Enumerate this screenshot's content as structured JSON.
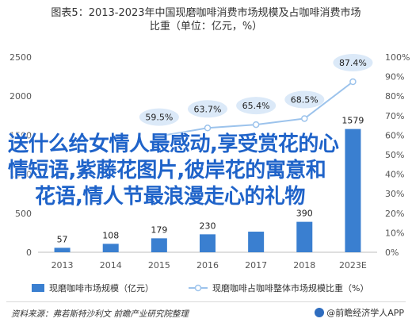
{
  "title": {
    "line1": "图表5：2013-2023年中国现磨咖啡消费市场规模及占咖啡消费市场",
    "line2": "比重（单位：亿元，%）"
  },
  "overlay_text": {
    "line1": "送什么给女情人最感动,享受赏花的心",
    "line2": "情短语,紫藤花图片,彼岸花的寓意和",
    "line3": "花语,情人节最浪漫走心的礼物"
  },
  "source": "资料来源：弗若斯特沙利文 前瞻产业研究院整理",
  "brand": "@前瞻经济学人APP",
  "colors": {
    "bar": "#3a7fd0",
    "line": "#9cc3ec",
    "marker_fill": "#ffffff",
    "callout_fill": "#dbe9f8",
    "axis_text": "#555555",
    "grid": "#e6e6e6"
  },
  "chart_data": {
    "type": "bar",
    "categories": [
      "2013",
      "2014",
      "2015",
      "2016",
      "2017",
      "2018",
      "2023E"
    ],
    "series": [
      {
        "name": "现磨咖啡市场规模（亿元）",
        "type": "bar",
        "axis": "left",
        "values": [
          57,
          108,
          179,
          230,
          264,
          390,
          1579
        ]
      },
      {
        "name": "现磨咖啡占咖啡整体市场规模比重（%）",
        "type": "line",
        "axis": "right",
        "values": [
          null,
          null,
          59.5,
          63.7,
          65.4,
          68.5,
          87.4
        ]
      }
    ],
    "bar_labels": [
      "57",
      "108",
      "179",
      "230",
      "",
      "390",
      "1579"
    ],
    "line_labels": [
      "",
      "",
      "59.5%",
      "63.7%",
      "65.4%",
      "68.5%",
      "87.4%"
    ],
    "y_left": {
      "lim": [
        0,
        2500
      ],
      "ticks": [
        "0",
        "500",
        "1000",
        "1500",
        "2000",
        "2500"
      ]
    },
    "y_right": {
      "lim": [
        0,
        100
      ],
      "ticks": [
        "0%",
        "10%",
        "20%",
        "30%",
        "40%",
        "50%",
        "60%",
        "70%",
        "80%",
        "90%",
        "100%"
      ]
    },
    "grid": false,
    "legend": "bottom"
  }
}
